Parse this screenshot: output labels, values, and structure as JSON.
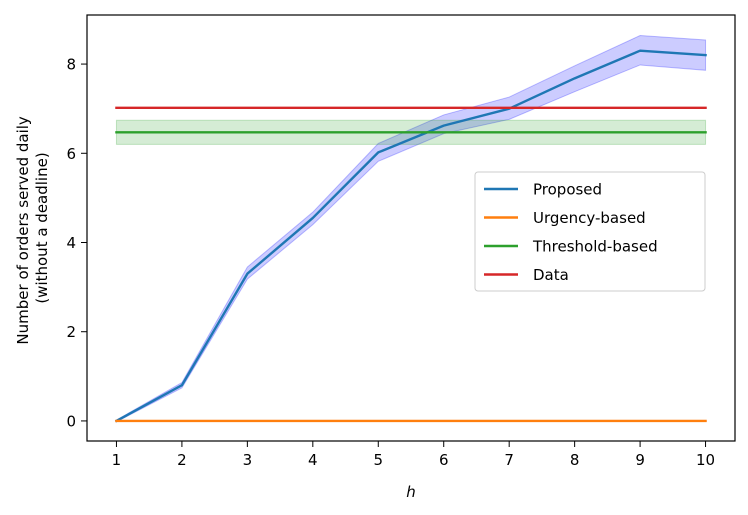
{
  "chart_data": {
    "type": "line",
    "title": "",
    "xlabel": "h",
    "ylabel_lines": [
      "Number of orders served daily",
      "(without a deadline)"
    ],
    "x": [
      1,
      2,
      3,
      4,
      5,
      6,
      7,
      8,
      9,
      10
    ],
    "xlim": [
      0.55,
      10.45
    ],
    "ylim": [
      -0.45,
      9.1
    ],
    "xticks": [
      1,
      2,
      3,
      4,
      5,
      6,
      7,
      8,
      9,
      10
    ],
    "yticks": [
      0,
      2,
      4,
      6,
      8
    ],
    "grid": false,
    "legend_position": "center-right",
    "series": [
      {
        "name": "Proposed",
        "color": "#1f77b4",
        "values": [
          0,
          0.8,
          3.3,
          4.55,
          6.02,
          6.62,
          7.0,
          7.68,
          8.3,
          8.2
        ],
        "band": {
          "color": "#0000ff",
          "lower": [
            -0.02,
            0.74,
            3.18,
            4.4,
            5.82,
            6.44,
            6.76,
            7.38,
            7.98,
            7.86
          ],
          "upper": [
            0.02,
            0.86,
            3.45,
            4.68,
            6.22,
            6.86,
            7.26,
            7.96,
            8.64,
            8.54
          ]
        }
      },
      {
        "name": "Urgency-based",
        "color": "#ff7f0e",
        "values": [
          0,
          0,
          0,
          0,
          0,
          0,
          0,
          0,
          0,
          0
        ]
      },
      {
        "name": "Threshold-based",
        "color": "#2ca02c",
        "values": [
          6.47,
          6.47,
          6.47,
          6.47,
          6.47,
          6.47,
          6.47,
          6.47,
          6.47,
          6.47
        ],
        "band": {
          "color": "#2ca02c",
          "lower": [
            6.2,
            6.2,
            6.2,
            6.2,
            6.2,
            6.2,
            6.2,
            6.2,
            6.2,
            6.2
          ],
          "upper": [
            6.74,
            6.74,
            6.74,
            6.74,
            6.74,
            6.74,
            6.74,
            6.74,
            6.74,
            6.74
          ]
        }
      },
      {
        "name": "Data",
        "color": "#d62728",
        "values": [
          7.02,
          7.02,
          7.02,
          7.02,
          7.02,
          7.02,
          7.02,
          7.02,
          7.02,
          7.02
        ]
      }
    ]
  }
}
